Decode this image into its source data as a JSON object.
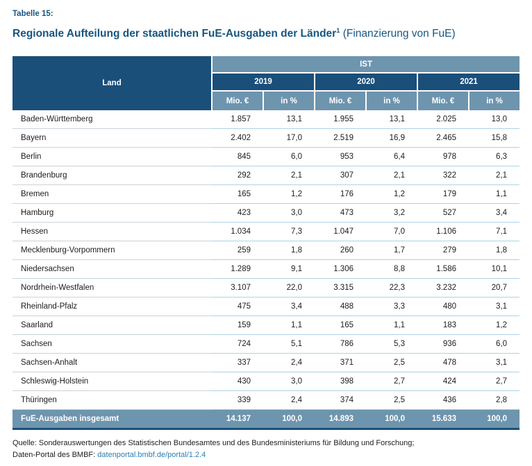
{
  "header": {
    "table_label": "Tabelle 15:",
    "title_main": "Regionale Aufteilung der staatlichen FuE-Ausgaben der Länder",
    "title_footnote_marker": "1",
    "title_suffix": " (Finanzierung von FuE)"
  },
  "table": {
    "corner_header": "Land",
    "group_header": "IST",
    "year_headers": [
      "2019",
      "2020",
      "2021"
    ],
    "unit_headers": [
      "Mio. €",
      "in %",
      "Mio. €",
      "in %",
      "Mio. €",
      "in %"
    ],
    "rows": [
      {
        "land": "Baden-Württemberg",
        "values": [
          "1.857",
          "13,1",
          "1.955",
          "13,1",
          "2.025",
          "13,0"
        ]
      },
      {
        "land": "Bayern",
        "values": [
          "2.402",
          "17,0",
          "2.519",
          "16,9",
          "2.465",
          "15,8"
        ]
      },
      {
        "land": "Berlin",
        "values": [
          "845",
          "6,0",
          "953",
          "6,4",
          "978",
          "6,3"
        ]
      },
      {
        "land": "Brandenburg",
        "values": [
          "292",
          "2,1",
          "307",
          "2,1",
          "322",
          "2,1"
        ]
      },
      {
        "land": "Bremen",
        "values": [
          "165",
          "1,2",
          "176",
          "1,2",
          "179",
          "1,1"
        ]
      },
      {
        "land": "Hamburg",
        "values": [
          "423",
          "3,0",
          "473",
          "3,2",
          "527",
          "3,4"
        ]
      },
      {
        "land": "Hessen",
        "values": [
          "1.034",
          "7,3",
          "1.047",
          "7,0",
          "1.106",
          "7,1"
        ]
      },
      {
        "land": "Mecklenburg-Vorpommern",
        "values": [
          "259",
          "1,8",
          "260",
          "1,7",
          "279",
          "1,8"
        ]
      },
      {
        "land": "Niedersachsen",
        "values": [
          "1.289",
          "9,1",
          "1.306",
          "8,8",
          "1.586",
          "10,1"
        ]
      },
      {
        "land": "Nordrhein-Westfalen",
        "values": [
          "3.107",
          "22,0",
          "3.315",
          "22,3",
          "3.232",
          "20,7"
        ]
      },
      {
        "land": "Rheinland-Pfalz",
        "values": [
          "475",
          "3,4",
          "488",
          "3,3",
          "480",
          "3,1"
        ]
      },
      {
        "land": "Saarland",
        "values": [
          "159",
          "1,1",
          "165",
          "1,1",
          "183",
          "1,2"
        ]
      },
      {
        "land": "Sachsen",
        "values": [
          "724",
          "5,1",
          "786",
          "5,3",
          "936",
          "6,0"
        ]
      },
      {
        "land": "Sachsen-Anhalt",
        "values": [
          "337",
          "2,4",
          "371",
          "2,5",
          "478",
          "3,1"
        ]
      },
      {
        "land": "Schleswig-Holstein",
        "values": [
          "430",
          "3,0",
          "398",
          "2,7",
          "424",
          "2,7"
        ]
      },
      {
        "land": "Thüringen",
        "values": [
          "339",
          "2,4",
          "374",
          "2,5",
          "436",
          "2,8"
        ]
      }
    ],
    "total_row": {
      "label": "FuE-Ausgaben insgesamt",
      "values": [
        "14.137",
        "100,0",
        "14.893",
        "100,0",
        "15.633",
        "100,0"
      ]
    }
  },
  "footer": {
    "source_line": "Quelle: Sonderauswertungen des Statistischen Bundesamtes und des Bundesministeriums für Bildung und Forschung;",
    "portal_prefix": "Daten-Portal des BMBF: ",
    "portal_link": "datenportal.bmbf.de/portal/1.2.4"
  },
  "colors": {
    "dark_blue": "#1a4f7a",
    "light_blue": "#6e95ae",
    "title_blue": "#17567f",
    "link_blue": "#2a7db5",
    "divider_blue": "#aed2e2"
  }
}
